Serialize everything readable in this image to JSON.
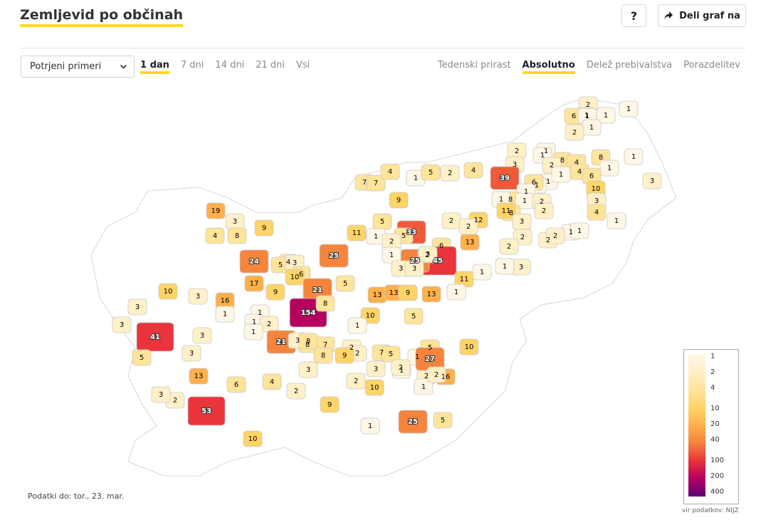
{
  "header": {
    "title": "Zemljevid po občinah",
    "help_label": "?",
    "share_label": "Deli graf na"
  },
  "controls": {
    "select_value": "Potrjeni primeri",
    "range_tabs": [
      {
        "label": "1 dan",
        "active": true
      },
      {
        "label": "7 dni",
        "active": false
      },
      {
        "label": "14 dni",
        "active": false
      },
      {
        "label": "21 dni",
        "active": false
      },
      {
        "label": "Vsi",
        "active": false
      }
    ],
    "mode_tabs": [
      {
        "label": "Tedenski prirast",
        "active": false
      },
      {
        "label": "Absolutno",
        "active": true
      },
      {
        "label": "Delež prebivalstva",
        "active": false
      },
      {
        "label": "Porazdelitev",
        "active": false
      }
    ]
  },
  "map": {
    "values": [
      "2",
      "1",
      "1",
      "6",
      "1",
      "1",
      "2",
      "2",
      "1",
      "1",
      "8",
      "4",
      "8",
      "1",
      "1",
      "3",
      "1",
      "4",
      "6",
      "1",
      "3",
      "2",
      "1",
      "1",
      "7",
      "7",
      "4",
      "1",
      "5",
      "2",
      "4",
      "39",
      "6",
      "1",
      "10",
      "8",
      "1",
      "1",
      "9",
      "8",
      "2",
      "2",
      "3",
      "11",
      "4",
      "1",
      "19",
      "3",
      "9",
      "2",
      "12",
      "2",
      "3",
      "4",
      "8",
      "5",
      "11",
      "2",
      "1",
      "2",
      "1",
      "2",
      "25",
      "33",
      "13",
      "1",
      "5",
      "2",
      "6",
      "2",
      "3",
      "45",
      "25",
      "2",
      "1",
      "3",
      "3",
      "3",
      "4",
      "24",
      "5",
      "3",
      "6",
      "17",
      "10",
      "21",
      "11",
      "1",
      "1",
      "5",
      "10",
      "3",
      "9",
      "13",
      "13",
      "9",
      "13",
      "16",
      "154",
      "8",
      "1",
      "3",
      "1",
      "1",
      "2",
      "10",
      "5",
      "3",
      "1",
      "1",
      "41",
      "3",
      "5",
      "1",
      "9",
      "21",
      "8",
      "7",
      "3",
      "8",
      "2",
      "7",
      "5",
      "1",
      "2",
      "8",
      "5",
      "2",
      "10",
      "2",
      "9",
      "1",
      "3",
      "13",
      "2",
      "4",
      "3",
      "2",
      "27",
      "16",
      "1",
      "6",
      "2",
      "3",
      "9",
      "2",
      "5",
      "10",
      "3",
      "53",
      "1",
      "25",
      "2",
      "10"
    ]
  },
  "legend": {
    "labels": [
      "1",
      "2",
      "4",
      "10",
      "20",
      "40",
      "100",
      "200",
      "400"
    ],
    "colors": [
      "#fff7e6",
      "#fff0c8",
      "#ffe49a",
      "#ffd468",
      "#fdb04c",
      "#f5853c",
      "#e9343b",
      "#b5005f",
      "#5e0075"
    ]
  },
  "footer": {
    "date_note": "Podatki do: tor., 23. mar.",
    "source": "vir podatkov: NIJZ"
  }
}
